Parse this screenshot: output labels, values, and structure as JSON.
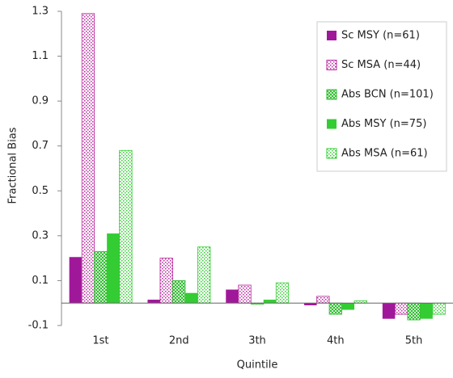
{
  "chart_data": {
    "type": "bar",
    "x_label": "Quintile",
    "y_label": "Fractional Bias",
    "categories": [
      "1st",
      "2nd",
      "3th",
      "4th",
      "5th"
    ],
    "series": [
      {
        "name": "Sc MSY (n=61)",
        "color": "#a0189a",
        "pattern": "solid",
        "values": [
          0.205,
          0.015,
          0.06,
          -0.01,
          -0.07
        ]
      },
      {
        "name": "Sc MSA (n=44)",
        "color": "#b8289e",
        "pattern": "dots",
        "values": [
          1.29,
          0.2,
          0.08,
          0.03,
          -0.05
        ]
      },
      {
        "name": "Abs BCN (n=101)",
        "color": "#33bb33",
        "pattern": "checker",
        "values": [
          0.23,
          0.1,
          -0.005,
          -0.05,
          -0.075
        ]
      },
      {
        "name": "Abs MSY (n=75)",
        "color": "#33cc33",
        "pattern": "solid",
        "values": [
          0.31,
          0.045,
          0.015,
          -0.03,
          -0.07
        ]
      },
      {
        "name": "Abs MSA (n=61)",
        "color": "#33cc33",
        "pattern": "dots",
        "values": [
          0.68,
          0.25,
          0.09,
          0.01,
          -0.05
        ]
      }
    ],
    "ylim": [
      -0.1,
      1.3
    ],
    "yticks": [
      -0.1,
      0.1,
      0.3,
      0.5,
      0.7,
      0.9,
      1.1,
      1.3
    ],
    "grid": false,
    "legend": "upper right"
  }
}
